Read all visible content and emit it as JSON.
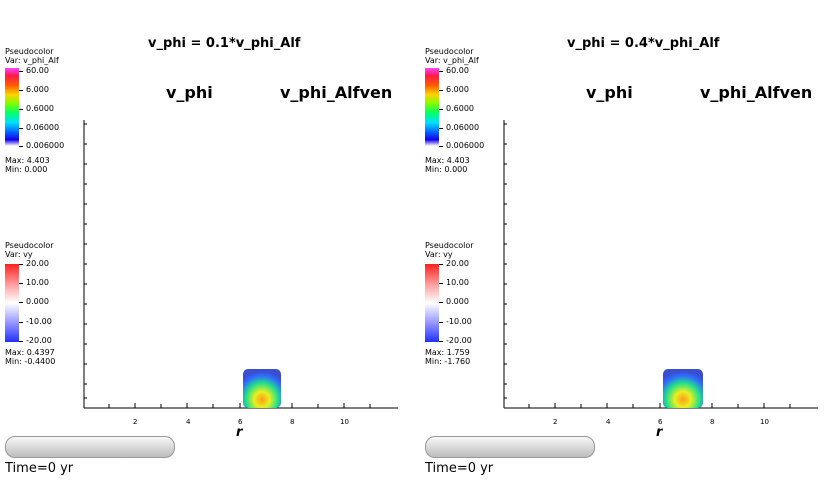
{
  "panels": [
    {
      "id": "left",
      "title": "v_phi = 0.1*v_phi_Alf",
      "label_vphi": "v_phi",
      "label_vphialfven": "v_phi_Alfven",
      "legend1": {
        "header": "Pseudocolor",
        "var": "Var: v_phi_Alf",
        "ticks": [
          "60.00",
          "6.000",
          "0.6000",
          "0.06000",
          "0.006000"
        ],
        "max": "Max:  4.403",
        "min": "Min:  0.000"
      },
      "legend2": {
        "header": "Pseudocolor",
        "var": "Var: vy",
        "ticks": [
          "20.00",
          "10.00",
          "0.000",
          "-10.00",
          "-20.00"
        ],
        "max": "Max:  0.4397",
        "min": "Min:  -0.4400"
      },
      "xticks": [
        "2",
        "4",
        "6",
        "8",
        "10"
      ],
      "xlabel": "r",
      "time": "Time=0 yr"
    },
    {
      "id": "right",
      "title": "v_phi = 0.4*v_phi_Alf",
      "label_vphi": "v_phi",
      "label_vphialfven": "v_phi_Alfven",
      "legend1": {
        "header": "Pseudocolor",
        "var": "Var: v_phi_Alf",
        "ticks": [
          "60.00",
          "6.000",
          "0.6000",
          "0.06000",
          "0.006000"
        ],
        "max": "Max:  4.403",
        "min": "Min:  0.000"
      },
      "legend2": {
        "header": "Pseudocolor",
        "var": "Var: vy",
        "ticks": [
          "20.00",
          "10.00",
          "0.000",
          "-10.00",
          "-20.00"
        ],
        "max": "Max:  1.759",
        "min": "Min:  -1.760"
      },
      "xticks": [
        "2",
        "4",
        "6",
        "8",
        "10"
      ],
      "xlabel": "r",
      "time": "Time=0 yr"
    }
  ],
  "colors": {
    "blob_outer": "#2f6bff",
    "blob_mid": "#22e08a",
    "blob_inner": "#e8f020",
    "blob_core": "#ff9a1a"
  }
}
